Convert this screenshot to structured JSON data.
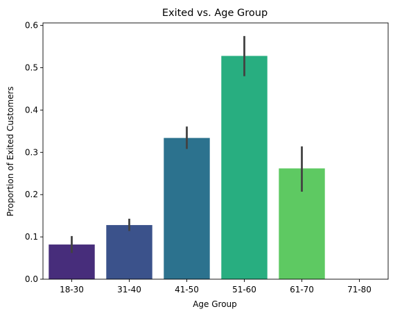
{
  "chart_data": {
    "type": "bar",
    "title": "Exited vs. Age Group",
    "xlabel": "Age Group",
    "ylabel": "Proportion of Exited Customers",
    "categories": [
      "18-30",
      "31-40",
      "41-50",
      "51-60",
      "61-70",
      "71-80"
    ],
    "values": [
      0.082,
      0.128,
      0.334,
      0.528,
      0.262,
      0.0
    ],
    "error_low": [
      0.062,
      0.114,
      0.308,
      0.48,
      0.207,
      0.0
    ],
    "error_high": [
      0.102,
      0.143,
      0.361,
      0.575,
      0.314,
      0.0
    ],
    "colors": [
      "#472d7b",
      "#3b528b",
      "#2c728e",
      "#28ae80",
      "#5ec962",
      "#addc30"
    ],
    "ylim": [
      0,
      0.6
    ],
    "yticks": [
      0.0,
      0.1,
      0.2,
      0.3,
      0.4,
      0.5,
      0.6
    ],
    "ytick_labels": [
      "0.0",
      "0.1",
      "0.2",
      "0.3",
      "0.4",
      "0.5",
      "0.6"
    ],
    "grid": false,
    "legend": "none"
  }
}
